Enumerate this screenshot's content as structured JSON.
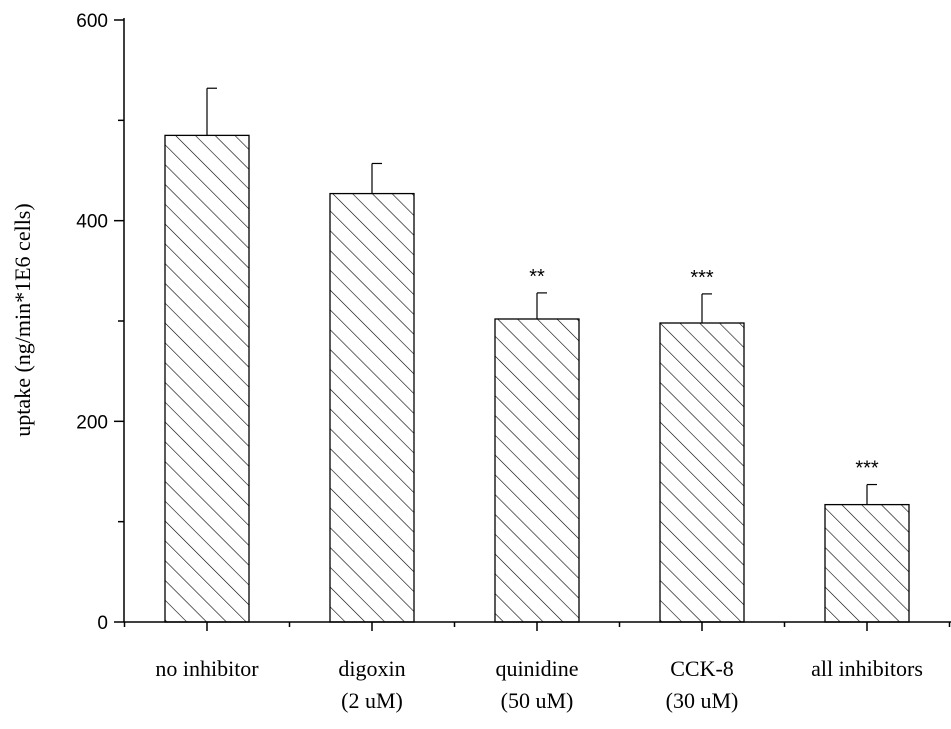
{
  "chart_data": {
    "type": "bar",
    "title": "",
    "xlabel": "",
    "ylabel": "uptake (ng/min*1E6 cells)",
    "ylim": [
      0,
      600
    ],
    "yticks_major": [
      0,
      200,
      400,
      600
    ],
    "yticks_minor": [
      100,
      300,
      500
    ],
    "grid": false,
    "legend": "none",
    "fill_pattern": "diagonal-hatch",
    "colors": {
      "bar_fill": "#ffffff",
      "bar_stroke": "#000000",
      "hatch": "#000000"
    },
    "categories": [
      [
        "no inhibitor"
      ],
      [
        "digoxin",
        "(2 uM)"
      ],
      [
        "quinidine",
        "(50 uM)"
      ],
      [
        "CCK-8",
        "(30 uM)"
      ],
      [
        "all inhibitors"
      ]
    ],
    "values": [
      485,
      427,
      302,
      298,
      117
    ],
    "errors": [
      47,
      30,
      26,
      29,
      20
    ],
    "significance": [
      "",
      "",
      "**",
      "***",
      "***"
    ]
  }
}
